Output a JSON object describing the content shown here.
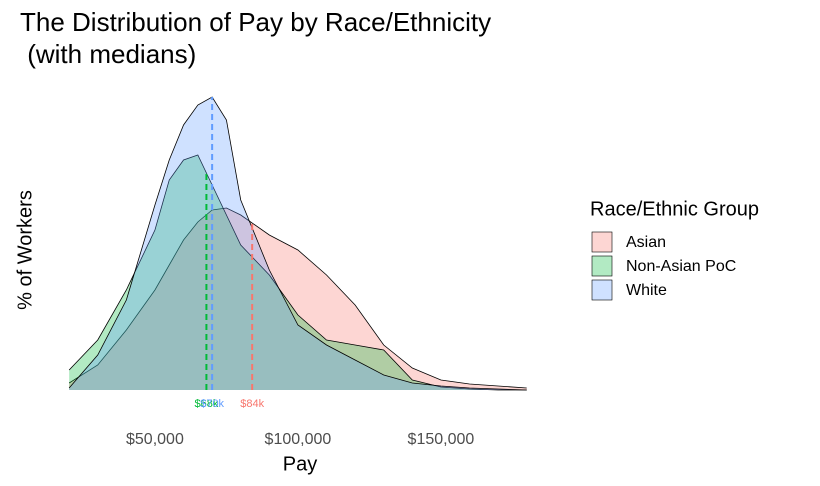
{
  "chart_data": {
    "type": "density",
    "title": [
      "The Distribution of Pay by Race/Ethnicity",
      " (with medians)"
    ],
    "x_label": "Pay",
    "y_label": "% of Workers",
    "legend_title": "Race/Ethnic Group",
    "x": [
      20000,
      30000,
      40000,
      50000,
      55000,
      60000,
      65000,
      70000,
      75000,
      80000,
      90000,
      100000,
      110000,
      120000,
      130000,
      140000,
      150000,
      160000,
      170000,
      180000
    ],
    "series": [
      {
        "name": "Asian",
        "color": "#f8766d",
        "median": 84000,
        "median_label": "$84k",
        "values": [
          7,
          25,
          60,
          100,
          125,
          150,
          168,
          180,
          182,
          175,
          155,
          140,
          115,
          85,
          45,
          22,
          10,
          6,
          4,
          2
        ]
      },
      {
        "name": "Non-Asian PoC",
        "color": "#00ba38",
        "median": 68000,
        "median_label": "$68k",
        "values": [
          20,
          50,
          100,
          160,
          210,
          230,
          235,
          205,
          175,
          145,
          115,
          75,
          50,
          45,
          40,
          10,
          3,
          1,
          0,
          0
        ]
      },
      {
        "name": "White",
        "color": "#619cff",
        "median": 70000,
        "median_label": "$70k",
        "values": [
          2,
          35,
          90,
          185,
          230,
          265,
          285,
          293,
          270,
          190,
          120,
          65,
          45,
          30,
          15,
          7,
          4,
          2,
          1,
          0
        ]
      }
    ],
    "xlim": [
      19600,
      182200
    ],
    "ylim": [
      0,
      300
    ],
    "xticks": [
      {
        "value": 50000,
        "label": "$50,000"
      },
      {
        "value": 100000,
        "label": "$100,000"
      },
      {
        "value": 150000,
        "label": "$150,000"
      }
    ],
    "legend": "right",
    "grid": false
  }
}
